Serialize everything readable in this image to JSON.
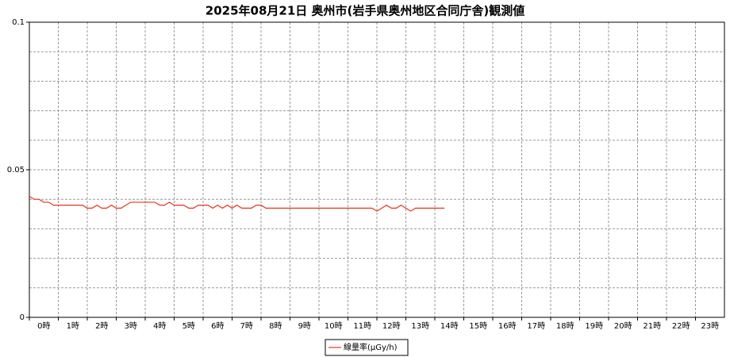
{
  "chart_data": {
    "type": "line",
    "title": "2025年08月21日 奥州市(岩手県奥州地区合同庁舎)観測値",
    "x": [
      0,
      10,
      20,
      30,
      40,
      50,
      60,
      70,
      80,
      90,
      100,
      110,
      120,
      130,
      140,
      150,
      160,
      170,
      180,
      190,
      200,
      210,
      220,
      230,
      240,
      250,
      260,
      270,
      280,
      290,
      300,
      310,
      320,
      330,
      340,
      350,
      360,
      370,
      380,
      390,
      400,
      410,
      420,
      430,
      440,
      450,
      460,
      470,
      480,
      490,
      500,
      510,
      520,
      530,
      540,
      550,
      560,
      570,
      580,
      590,
      600,
      610,
      620,
      630,
      640,
      650,
      660,
      670,
      680,
      690,
      700,
      710,
      720,
      730,
      740,
      750,
      760,
      770,
      780,
      790,
      800,
      810,
      820,
      830,
      840,
      850,
      860
    ],
    "series": [
      {
        "name": "線量率(μGy/h)",
        "color": "#e8331c",
        "values": [
          0.041,
          0.04,
          0.04,
          0.039,
          0.039,
          0.038,
          0.038,
          0.038,
          0.038,
          0.038,
          0.038,
          0.038,
          0.037,
          0.037,
          0.038,
          0.037,
          0.037,
          0.038,
          0.037,
          0.037,
          0.038,
          0.039,
          0.039,
          0.039,
          0.039,
          0.039,
          0.039,
          0.038,
          0.038,
          0.039,
          0.038,
          0.038,
          0.038,
          0.037,
          0.037,
          0.038,
          0.038,
          0.038,
          0.037,
          0.038,
          0.037,
          0.038,
          0.037,
          0.038,
          0.037,
          0.037,
          0.037,
          0.038,
          0.038,
          0.037,
          0.037,
          0.037,
          0.037,
          0.037,
          0.037,
          0.037,
          0.037,
          0.037,
          0.037,
          0.037,
          0.037,
          0.037,
          0.037,
          0.037,
          0.037,
          0.037,
          0.037,
          0.037,
          0.037,
          0.037,
          0.037,
          0.037,
          0.036,
          0.037,
          0.038,
          0.037,
          0.037,
          0.038,
          0.037,
          0.036,
          0.037,
          0.037,
          0.037,
          0.037,
          0.037,
          0.037,
          0.037
        ]
      }
    ],
    "xlim": [
      0,
      1440
    ],
    "xticks": [
      {
        "value": 0,
        "label": "0時"
      },
      {
        "value": 60,
        "label": "1時"
      },
      {
        "value": 120,
        "label": "2時"
      },
      {
        "value": 180,
        "label": "3時"
      },
      {
        "value": 240,
        "label": "4時"
      },
      {
        "value": 300,
        "label": "5時"
      },
      {
        "value": 360,
        "label": "6時"
      },
      {
        "value": 420,
        "label": "7時"
      },
      {
        "value": 480,
        "label": "8時"
      },
      {
        "value": 540,
        "label": "9時"
      },
      {
        "value": 600,
        "label": "10時"
      },
      {
        "value": 660,
        "label": "11時"
      },
      {
        "value": 720,
        "label": "12時"
      },
      {
        "value": 780,
        "label": "13時"
      },
      {
        "value": 840,
        "label": "14時"
      },
      {
        "value": 900,
        "label": "15時"
      },
      {
        "value": 960,
        "label": "16時"
      },
      {
        "value": 1020,
        "label": "17時"
      },
      {
        "value": 1080,
        "label": "18時"
      },
      {
        "value": 1140,
        "label": "19時"
      },
      {
        "value": 1200,
        "label": "20時"
      },
      {
        "value": 1260,
        "label": "21時"
      },
      {
        "value": 1320,
        "label": "22時"
      },
      {
        "value": 1380,
        "label": "23時"
      }
    ],
    "ylim": [
      0,
      0.1
    ],
    "yticks": [
      0,
      0.05,
      0.1
    ],
    "y_minor_ticks": [
      0.01,
      0.02,
      0.03,
      0.04,
      0.06,
      0.07,
      0.08,
      0.09
    ],
    "grid": true,
    "legend": "bottom"
  }
}
